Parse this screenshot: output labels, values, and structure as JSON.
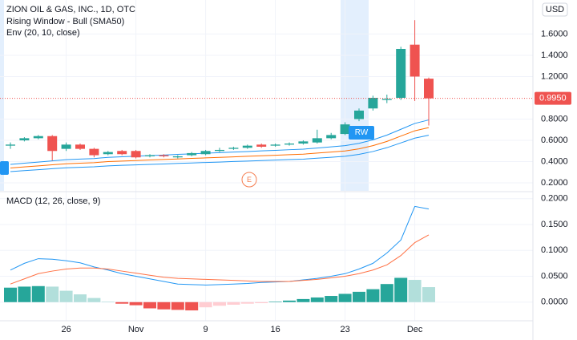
{
  "chart_data": {
    "type": "candlestick",
    "title": "ZION OIL & GAS, INC., 1D, OTC",
    "indicators": [
      "Rising Window - Bull (SMA50)",
      "Env (20, 10, close)"
    ],
    "currency": "USD",
    "categories": [
      null,
      null,
      null,
      null,
      "26",
      null,
      null,
      null,
      null,
      "Nov",
      null,
      null,
      null,
      null,
      "9",
      null,
      null,
      null,
      null,
      "16",
      null,
      null,
      null,
      null,
      "23",
      null,
      null,
      null,
      null,
      "Dec",
      null
    ],
    "open": [
      0.55,
      0.6,
      0.62,
      0.64,
      0.52,
      0.56,
      0.52,
      0.47,
      0.5,
      0.5,
      0.45,
      0.46,
      0.44,
      0.46,
      0.47,
      0.5,
      0.52,
      0.53,
      0.56,
      0.55,
      0.56,
      0.57,
      0.58,
      0.62,
      0.66,
      0.8,
      0.9,
      0.98,
      1.0,
      1.5,
      1.18
    ],
    "high": [
      0.58,
      0.63,
      0.65,
      0.65,
      0.58,
      0.57,
      0.53,
      0.5,
      0.51,
      0.51,
      0.47,
      0.47,
      0.46,
      0.49,
      0.51,
      0.53,
      0.54,
      0.56,
      0.57,
      0.57,
      0.58,
      0.6,
      0.7,
      0.67,
      0.77,
      0.9,
      1.02,
      1.03,
      1.48,
      1.73,
      1.19
    ],
    "low": [
      0.52,
      0.59,
      0.61,
      0.41,
      0.5,
      0.51,
      0.44,
      0.46,
      0.46,
      0.43,
      0.44,
      0.44,
      0.43,
      0.45,
      0.46,
      0.49,
      0.51,
      0.52,
      0.53,
      0.54,
      0.55,
      0.56,
      0.57,
      0.61,
      0.65,
      0.78,
      0.88,
      0.95,
      0.98,
      0.97,
      0.74
    ],
    "close": [
      0.56,
      0.62,
      0.64,
      0.5,
      0.56,
      0.52,
      0.46,
      0.49,
      0.47,
      0.44,
      0.46,
      0.45,
      0.45,
      0.48,
      0.5,
      0.51,
      0.53,
      0.55,
      0.54,
      0.56,
      0.57,
      0.59,
      0.62,
      0.65,
      0.75,
      0.88,
      1.0,
      0.99,
      1.46,
      1.2,
      0.995
    ],
    "up_color": "#26a69a",
    "down_color": "#ef5350",
    "lines": [
      {
        "color": "#2196f3",
        "values": [
          0.374,
          0.385,
          0.396,
          0.407,
          0.418,
          0.424,
          0.429,
          0.44,
          0.446,
          0.451,
          0.457,
          0.462,
          0.468,
          0.473,
          0.479,
          0.484,
          0.49,
          0.495,
          0.501,
          0.506,
          0.512,
          0.517,
          0.528,
          0.539,
          0.55,
          0.572,
          0.605,
          0.649,
          0.704,
          0.759,
          0.792
        ]
      },
      {
        "color": "#ff6d00",
        "values": [
          0.34,
          0.35,
          0.36,
          0.37,
          0.38,
          0.385,
          0.39,
          0.4,
          0.405,
          0.41,
          0.415,
          0.42,
          0.425,
          0.43,
          0.435,
          0.44,
          0.445,
          0.45,
          0.455,
          0.46,
          0.465,
          0.47,
          0.48,
          0.49,
          0.5,
          0.52,
          0.55,
          0.59,
          0.64,
          0.69,
          0.72
        ]
      },
      {
        "color": "#2196f3",
        "values": [
          0.306,
          0.315,
          0.324,
          0.333,
          0.342,
          0.347,
          0.351,
          0.36,
          0.365,
          0.369,
          0.374,
          0.378,
          0.383,
          0.387,
          0.392,
          0.396,
          0.401,
          0.405,
          0.41,
          0.414,
          0.419,
          0.423,
          0.432,
          0.441,
          0.45,
          0.468,
          0.495,
          0.531,
          0.576,
          0.621,
          0.648
        ]
      }
    ],
    "last_price": 0.995,
    "last_price_label": "0.9950",
    "last_price_color": "#ef5350",
    "annotations": [
      "RW",
      "E"
    ],
    "ylim": [
      0.125,
      1.92
    ],
    "yticks": [
      {
        "value": 0.2,
        "label": "0.2000"
      },
      {
        "value": 0.4,
        "label": "0.4000"
      },
      {
        "value": 0.6,
        "label": "0.6000"
      },
      {
        "value": 0.8,
        "label": "0.8000"
      },
      {
        "value": 1.2,
        "label": "1.2000"
      },
      {
        "value": 1.4,
        "label": "1.4000"
      },
      {
        "value": 1.6,
        "label": "1.6000"
      }
    ],
    "grid": true,
    "macd": {
      "title": "MACD (12, 26, close, 9)",
      "histogram": [
        0.028,
        0.03,
        0.031,
        0.03,
        0.022,
        0.015,
        0.008,
        0.001,
        -0.003,
        -0.006,
        -0.012,
        -0.014,
        -0.015,
        -0.016,
        -0.01,
        -0.007,
        -0.005,
        -0.003,
        -0.002,
        0.001,
        0.003,
        0.006,
        0.009,
        0.012,
        0.016,
        0.02,
        0.025,
        0.035,
        0.047,
        0.043,
        0.029
      ],
      "palette": {
        "up_rising": "#26a69a",
        "up_falling": "#b2dfdb",
        "down_falling": "#ef5350",
        "down_rising": "#ffcdd2"
      },
      "lines": [
        {
          "color": "#2196f3",
          "values": [
            0.062,
            0.075,
            0.084,
            0.083,
            0.08,
            0.076,
            0.068,
            0.062,
            0.055,
            0.05,
            0.045,
            0.04,
            0.035,
            0.034,
            0.033,
            0.034,
            0.035,
            0.036,
            0.038,
            0.039,
            0.04,
            0.043,
            0.046,
            0.05,
            0.055,
            0.064,
            0.075,
            0.095,
            0.12,
            0.185,
            0.18
          ]
        },
        {
          "color": "#ff7043",
          "values": [
            0.035,
            0.045,
            0.055,
            0.06,
            0.064,
            0.066,
            0.066,
            0.064,
            0.06,
            0.056,
            0.052,
            0.048,
            0.046,
            0.045,
            0.044,
            0.043,
            0.042,
            0.041,
            0.04,
            0.04,
            0.04,
            0.042,
            0.044,
            0.047,
            0.05,
            0.055,
            0.062,
            0.072,
            0.09,
            0.115,
            0.13
          ]
        }
      ],
      "ylim": [
        -0.036,
        0.212
      ],
      "yticks": [
        {
          "value": 0,
          "label": "0.0000"
        },
        {
          "value": 0.05,
          "label": "0.0500"
        },
        {
          "value": 0.1,
          "label": "0.1000"
        },
        {
          "value": 0.15,
          "label": "0.1500"
        },
        {
          "value": 0.2,
          "label": "0.2000"
        }
      ]
    }
  }
}
